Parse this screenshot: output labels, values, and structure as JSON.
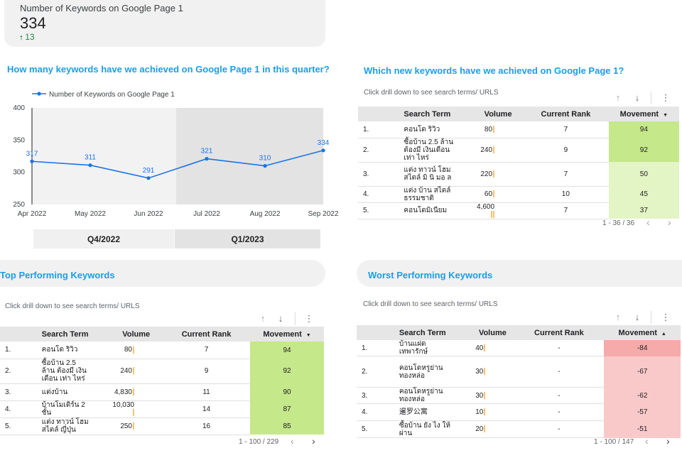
{
  "scorecard": {
    "label": "Number of Keywords on Google Page 1",
    "value": "334",
    "delta": "13",
    "delta_icon": "arrow-up-icon"
  },
  "chart_section": {
    "title": "How many keywords have we achieved on Google Page 1 in this quarter?"
  },
  "chart_data": {
    "type": "line",
    "legend": "Number of Keywords on Google Page 1",
    "categories": [
      "Apr 2022",
      "May 2022",
      "Jun 2022",
      "Jul 2022",
      "Aug 2022",
      "Sep 2022"
    ],
    "values": [
      317,
      311,
      291,
      321,
      310,
      334
    ],
    "y_ticks": [
      "400",
      "350",
      "300",
      "250"
    ],
    "ylim": [
      250,
      400
    ],
    "series_color": "#1a73e8",
    "quarters": [
      "Q4/2022",
      "Q1/2023"
    ]
  },
  "new_keywords": {
    "title": "Which new keywords have we achieved on Google Page 1?",
    "hint": "Click drill down to see search terms/ URLS",
    "columns": [
      "Search Term",
      "Volume",
      "Current Rank",
      "Movement"
    ],
    "sort_icon": "▼",
    "rows": [
      {
        "idx": "1.",
        "term": "คอนโด ริวิว",
        "volume": "80",
        "rank": "7",
        "move": "94",
        "bar": 1
      },
      {
        "idx": "2.",
        "term": "ซื้อบ้าน 2.5 ล้าน ต้องมี เงินเดือน เท่า ไหร่",
        "volume": "240",
        "rank": "9",
        "move": "92",
        "bar": 1
      },
      {
        "idx": "3.",
        "term": "แต่ง ทาวน์ โฮม สไตล์ มิ นิ มอ ล",
        "volume": "220",
        "rank": "7",
        "move": "50",
        "bar": 1
      },
      {
        "idx": "4.",
        "term": "แต่ง บ้าน สไตล์ ธรรมชาติ",
        "volume": "60",
        "rank": "10",
        "move": "45",
        "bar": 1
      },
      {
        "idx": "5.",
        "term": "คอนโดมิเนียม",
        "volume": "4,600",
        "rank": "7",
        "move": "37",
        "bar": 2
      }
    ],
    "pager": "1 - 36 / 36"
  },
  "top_keywords": {
    "title": "Top Performing Keywords",
    "hint": "Click drill down to see search terms/ URLS",
    "columns": [
      "Search Term",
      "Volume",
      "Current Rank",
      "Movement"
    ],
    "sort_icon": "▼",
    "rows": [
      {
        "idx": "1.",
        "term": "คอนโด ริวิว",
        "volume": "80",
        "rank": "7",
        "move": "94",
        "bar": 1
      },
      {
        "idx": "2.",
        "term": "ซื้อบ้าน 2.5 ล้าน ต้องมี เงินเดือน เท่า ไหร่",
        "volume": "240",
        "rank": "9",
        "move": "92",
        "bar": 1
      },
      {
        "idx": "3.",
        "term": "แต่งบ้าน",
        "volume": "4,830",
        "rank": "11",
        "move": "90",
        "bar": 1
      },
      {
        "idx": "4.",
        "term": "บ้านโมเดิร์น 2 ชั้น",
        "volume": "10,030",
        "rank": "14",
        "move": "87",
        "bar": 1
      },
      {
        "idx": "5.",
        "term": "แต่ง ทาวน์ โฮม สไตล์ ญี่ปุ่น",
        "volume": "250",
        "rank": "16",
        "move": "85",
        "bar": 1
      }
    ],
    "pager": "1 - 100 / 229"
  },
  "worst_keywords": {
    "title": "Worst Performing Keywords",
    "hint": "Click drill down to see search terms/ URLS",
    "columns": [
      "Search Term",
      "Volume",
      "Current Rank",
      "Movement"
    ],
    "sort_icon": "▲",
    "rows": [
      {
        "idx": "1.",
        "term": "บ้านแฝด เทพารักษ์",
        "volume": "40",
        "rank": "-",
        "move": "-84",
        "bar": 1
      },
      {
        "idx": "2.",
        "term": "คอนโดหรูย่าน ทองหล่อ",
        "volume": "30",
        "rank": "-",
        "move": "-67",
        "bar": 1
      },
      {
        "idx": "3.",
        "term": "คอนโดหรูย่านทองหล่อ",
        "volume": "30",
        "rank": "-",
        "move": "-62",
        "bar": 1
      },
      {
        "idx": "4.",
        "term": "暹罗公寓",
        "volume": "10",
        "rank": "-",
        "move": "-57",
        "bar": 1
      },
      {
        "idx": "5.",
        "term": "ซื้อบ้าน ยัง ไง ให้ผ่าน",
        "volume": "20",
        "rank": "-",
        "move": "-51",
        "bar": 1
      }
    ],
    "pager": "1 - 100 / 147"
  },
  "toolbar_icons": [
    "arrow-up-icon",
    "arrow-down-icon",
    "more-vert-icon"
  ],
  "colors": {
    "accent": "#1a9ee6",
    "positive_strong": "#c5e88a",
    "positive_light": "#e3f4c5",
    "negative_strong": "#f6aaaa",
    "negative_light": "#f9c9c9"
  }
}
